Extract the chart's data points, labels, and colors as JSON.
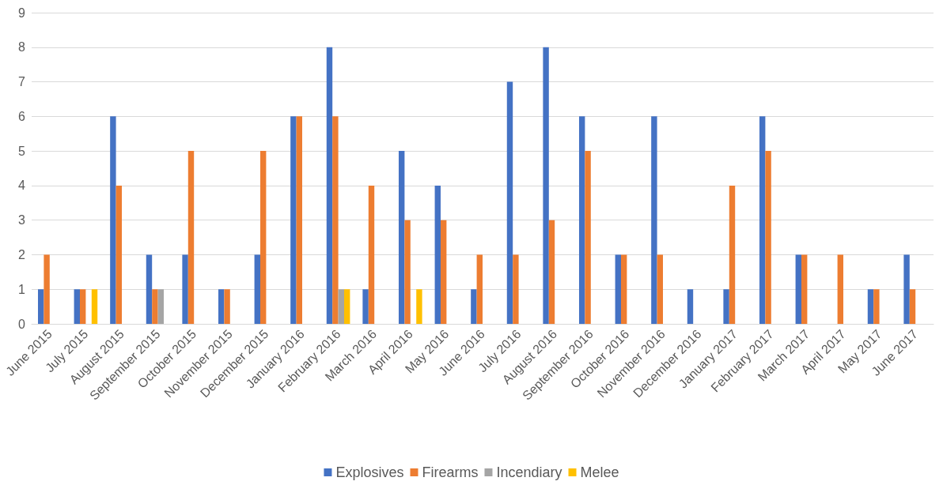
{
  "chart_data": {
    "type": "bar",
    "categories": [
      "June 2015",
      "July 2015",
      "August 2015",
      "September 2015",
      "October 2015",
      "November 2015",
      "December 2015",
      "January 2016",
      "February 2016",
      "March 2016",
      "April 2016",
      "May 2016",
      "June 2016",
      "July 2016",
      "August 2016",
      "September 2016",
      "October 2016",
      "November 2016",
      "December 2016",
      "January 2017",
      "February 2017",
      "March 2017",
      "April 2017",
      "May 2017",
      "June 2017"
    ],
    "series": [
      {
        "name": "Explosives",
        "color": "#4472c4",
        "values": [
          1,
          1,
          6,
          2,
          2,
          1,
          2,
          6,
          8,
          1,
          5,
          4,
          1,
          7,
          8,
          6,
          2,
          6,
          1,
          1,
          6,
          2,
          0,
          1,
          2
        ]
      },
      {
        "name": "Firearms",
        "color": "#ed7d31",
        "values": [
          2,
          1,
          4,
          1,
          5,
          1,
          5,
          6,
          6,
          4,
          3,
          3,
          2,
          2,
          3,
          5,
          2,
          2,
          0,
          4,
          5,
          2,
          2,
          1,
          1
        ]
      },
      {
        "name": "Incendiary",
        "color": "#a5a5a5",
        "values": [
          0,
          0,
          0,
          1,
          0,
          0,
          0,
          0,
          1,
          0,
          0,
          0,
          0,
          0,
          0,
          0,
          0,
          0,
          0,
          0,
          0,
          0,
          0,
          0,
          0
        ]
      },
      {
        "name": "Melee",
        "color": "#ffc000",
        "values": [
          0,
          1,
          0,
          0,
          0,
          0,
          0,
          0,
          1,
          0,
          1,
          0,
          0,
          0,
          0,
          0,
          0,
          0,
          0,
          0,
          0,
          0,
          0,
          0,
          0
        ]
      }
    ],
    "ylim": [
      0,
      9
    ],
    "yticks": [
      0,
      1,
      2,
      3,
      4,
      5,
      6,
      7,
      8,
      9
    ],
    "grid": "y",
    "legend": "bottom"
  }
}
